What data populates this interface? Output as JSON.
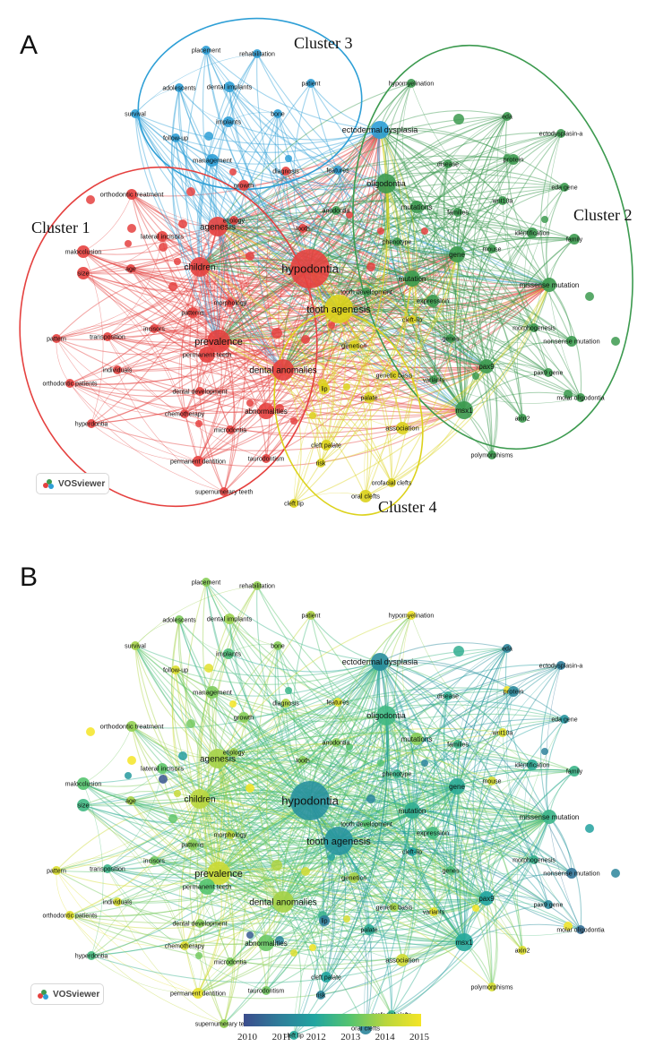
{
  "panels": [
    {
      "letter": "A",
      "mode": "cluster"
    },
    {
      "letter": "B",
      "mode": "year"
    }
  ],
  "clusters": [
    {
      "label": "Cluster 1",
      "color": "#e5413f"
    },
    {
      "label": "Cluster 2",
      "color": "#3c9a4f"
    },
    {
      "label": "Cluster 3",
      "color": "#2e9fd6"
    },
    {
      "label": "Cluster 4",
      "color": "#dcd21c"
    }
  ],
  "badge_text": "VOSviewer",
  "year_legend": {
    "years": [
      "2010",
      "2011",
      "2012",
      "2013",
      "2014",
      "2015"
    ],
    "colors": [
      "#3b4c8c",
      "#2f7d9a",
      "#21a5a0",
      "#55c46f",
      "#b9d63d",
      "#f4e526"
    ]
  },
  "terms": [
    {
      "name": "hypodontia",
      "cluster": 1,
      "year": 2011.5
    },
    {
      "name": "tooth agenesis",
      "cluster": 4,
      "year": 2011.6
    },
    {
      "name": "agenesis",
      "cluster": 1,
      "year": 2013.8
    },
    {
      "name": "children",
      "cluster": 1,
      "year": 2014.0
    },
    {
      "name": "prevalence",
      "cluster": 1,
      "year": 2014.3
    },
    {
      "name": "dental anomalies",
      "cluster": 1,
      "year": 2013.8
    },
    {
      "name": "abnormalities",
      "cluster": 1,
      "year": 2013.2
    },
    {
      "name": "permanent teeth",
      "cluster": 1,
      "year": 2013.0
    },
    {
      "name": "patterns",
      "cluster": 1,
      "year": 2013.5
    },
    {
      "name": "morphology",
      "cluster": 1,
      "year": 2014.0
    },
    {
      "name": "incisors",
      "cluster": 1,
      "year": 2013.3
    },
    {
      "name": "transposition",
      "cluster": 1,
      "year": 2012.5
    },
    {
      "name": "pattern",
      "cluster": 1,
      "year": 2014.6
    },
    {
      "name": "orthodontic patients",
      "cluster": 1,
      "year": 2014.7
    },
    {
      "name": "individuals",
      "cluster": 1,
      "year": 2014.5
    },
    {
      "name": "dental development",
      "cluster": 1,
      "year": 2013.5
    },
    {
      "name": "chemotherapy",
      "cluster": 1,
      "year": 2014.6
    },
    {
      "name": "microdontia",
      "cluster": 1,
      "year": 2013.4
    },
    {
      "name": "hyperdontia",
      "cluster": 1,
      "year": 2012.7
    },
    {
      "name": "permanent dentition",
      "cluster": 1,
      "year": 2014.8
    },
    {
      "name": "taurodontism",
      "cluster": 1,
      "year": 2013.3
    },
    {
      "name": "supernumerary teeth",
      "cluster": 1,
      "year": 2013.6
    },
    {
      "name": "malocclusion",
      "cluster": 1,
      "year": 2013.0
    },
    {
      "name": "size",
      "cluster": 1,
      "year": 2012.6
    },
    {
      "name": "age",
      "cluster": 1,
      "year": 2013.8
    },
    {
      "name": "lateral incisors",
      "cluster": 1,
      "year": 2013.1
    },
    {
      "name": "orthodontic treatment",
      "cluster": 1,
      "year": 2013.6
    },
    {
      "name": "etiology",
      "cluster": 1,
      "year": 2013.7
    },
    {
      "name": "tooth",
      "cluster": 1,
      "year": 2013.5
    },
    {
      "name": "growth",
      "cluster": 1,
      "year": 2013.5
    },
    {
      "name": "diagnosis",
      "cluster": 1,
      "year": 2013.9
    },
    {
      "name": "placement",
      "cluster": 3,
      "year": 2013.5
    },
    {
      "name": "rehabilitation",
      "cluster": 3,
      "year": 2013.6
    },
    {
      "name": "adolescents",
      "cluster": 3,
      "year": 2013.4
    },
    {
      "name": "dental implants",
      "cluster": 3,
      "year": 2013.7
    },
    {
      "name": "patient",
      "cluster": 3,
      "year": 2013.9
    },
    {
      "name": "bone",
      "cluster": 3,
      "year": 2013.5
    },
    {
      "name": "survival",
      "cluster": 3,
      "year": 2013.8
    },
    {
      "name": "implants",
      "cluster": 3,
      "year": 2012.8
    },
    {
      "name": "follow-up",
      "cluster": 3,
      "year": 2014.6
    },
    {
      "name": "management",
      "cluster": 3,
      "year": 2013.4
    },
    {
      "name": "features",
      "cluster": 3,
      "year": 2014.7
    },
    {
      "name": "ectodermal dysplasia",
      "cluster": 3,
      "year": 2011.4
    },
    {
      "name": "hypomyelination",
      "cluster": 2,
      "year": 2014.9
    },
    {
      "name": "eda",
      "cluster": 2,
      "year": 2011.2
    },
    {
      "name": "ectodysplasin-a",
      "cluster": 2,
      "year": 2011.0
    },
    {
      "name": "protein",
      "cluster": 2,
      "year": 2011.3
    },
    {
      "name": "eda gene",
      "cluster": 2,
      "year": 2011.6
    },
    {
      "name": "disease",
      "cluster": 2,
      "year": 2012.3
    },
    {
      "name": "oligodontia",
      "cluster": 2,
      "year": 2012.6
    },
    {
      "name": "mutations",
      "cluster": 2,
      "year": 2013.5
    },
    {
      "name": "families",
      "cluster": 2,
      "year": 2012.5
    },
    {
      "name": "wnt10a",
      "cluster": 2,
      "year": 2014.6
    },
    {
      "name": "identification",
      "cluster": 2,
      "year": 2012.2
    },
    {
      "name": "family",
      "cluster": 2,
      "year": 2012.5
    },
    {
      "name": "anodontia",
      "cluster": 2,
      "year": 2013.5
    },
    {
      "name": "phenotype",
      "cluster": 2,
      "year": 2012.4
    },
    {
      "name": "mouse",
      "cluster": 2,
      "year": 2014.5
    },
    {
      "name": "gene",
      "cluster": 2,
      "year": 2012.2
    },
    {
      "name": "mutation",
      "cluster": 2,
      "year": 2012.3
    },
    {
      "name": "missense mutation",
      "cluster": 2,
      "year": 2012.5
    },
    {
      "name": "tooth development",
      "cluster": 2,
      "year": 2013.0
    },
    {
      "name": "expression",
      "cluster": 2,
      "year": 2012.7
    },
    {
      "name": "morphogenesis",
      "cluster": 2,
      "year": 2012.4
    },
    {
      "name": "genes",
      "cluster": 2,
      "year": 2012.8
    },
    {
      "name": "nonsense mutation",
      "cluster": 2,
      "year": 2010.8
    },
    {
      "name": "variants",
      "cluster": 2,
      "year": 2014.8
    },
    {
      "name": "pax9",
      "cluster": 2,
      "year": 2012.0
    },
    {
      "name": "pax9 gene",
      "cluster": 2,
      "year": 2011.3
    },
    {
      "name": "molar oligodontia",
      "cluster": 2,
      "year": 2010.7
    },
    {
      "name": "msx1",
      "cluster": 2,
      "year": 2012.1
    },
    {
      "name": "axin2",
      "cluster": 2,
      "year": 2014.6
    },
    {
      "name": "polymorphisms",
      "cluster": 2,
      "year": 2014.5
    },
    {
      "name": "cleft-lip",
      "cluster": 4,
      "year": 2012.0
    },
    {
      "name": "genetics",
      "cluster": 4,
      "year": 2013.8
    },
    {
      "name": "genetic basis",
      "cluster": 4,
      "year": 2013.8
    },
    {
      "name": "lip",
      "cluster": 4,
      "year": 2011.0
    },
    {
      "name": "palate",
      "cluster": 4,
      "year": 2012.2
    },
    {
      "name": "association",
      "cluster": 4,
      "year": 2014.4
    },
    {
      "name": "cleft palate",
      "cluster": 4,
      "year": 2012.0
    },
    {
      "name": "risk",
      "cluster": 4,
      "year": 2011.2
    },
    {
      "name": "orofacial clefts",
      "cluster": 4,
      "year": 2012.4
    },
    {
      "name": "oral clefts",
      "cluster": 4,
      "year": 2011.2
    },
    {
      "name": "cleft lip",
      "cluster": 4,
      "year": 2012.1
    }
  ]
}
